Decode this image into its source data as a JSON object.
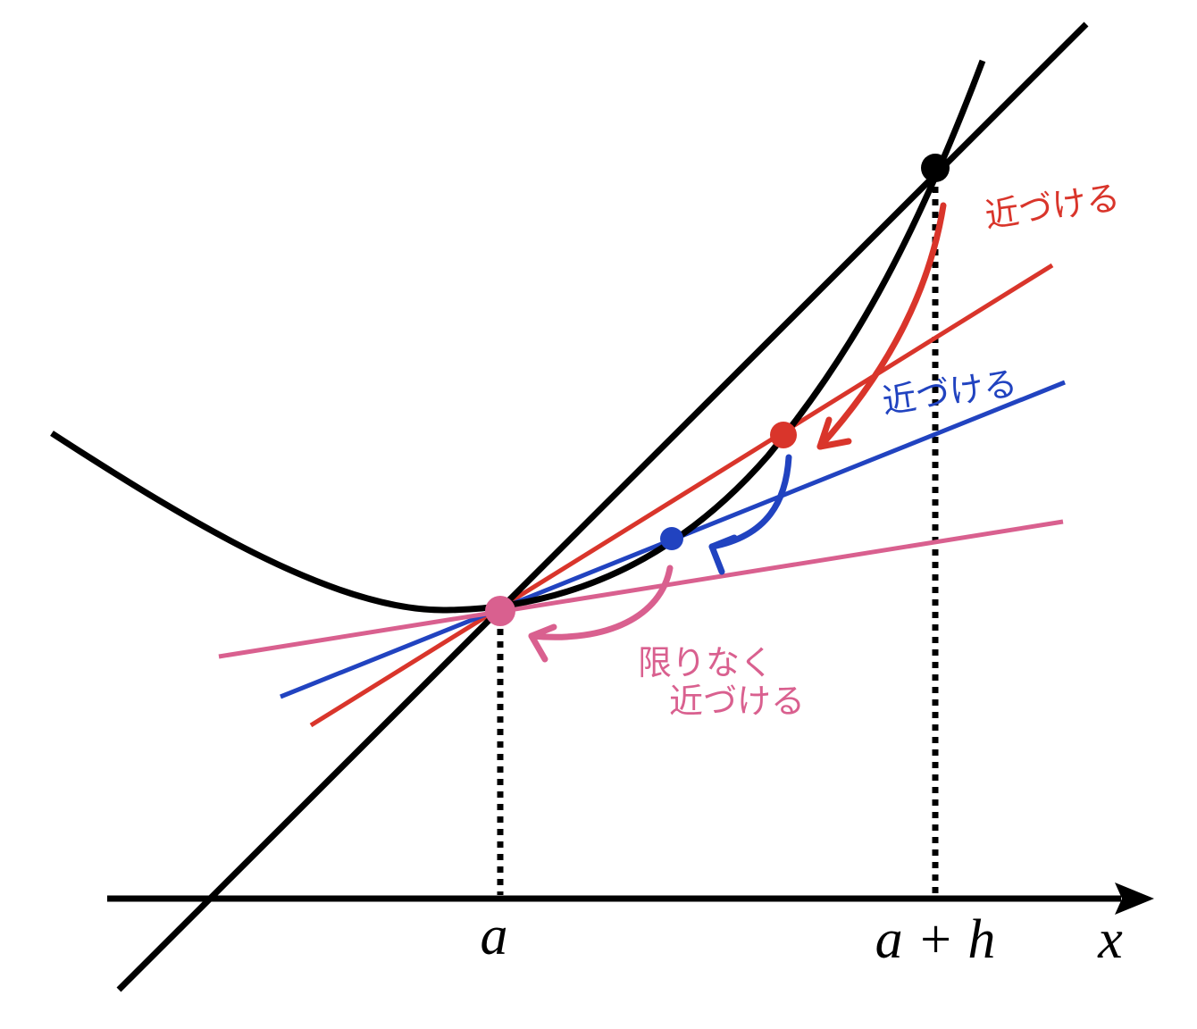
{
  "axis_labels": {
    "a": "a",
    "a_plus_h": "a + h",
    "x": "x"
  },
  "annotations": {
    "red": "近づける",
    "blue": "近づける",
    "pink_line1": "限りなく",
    "pink_line2": "近づける"
  }
}
